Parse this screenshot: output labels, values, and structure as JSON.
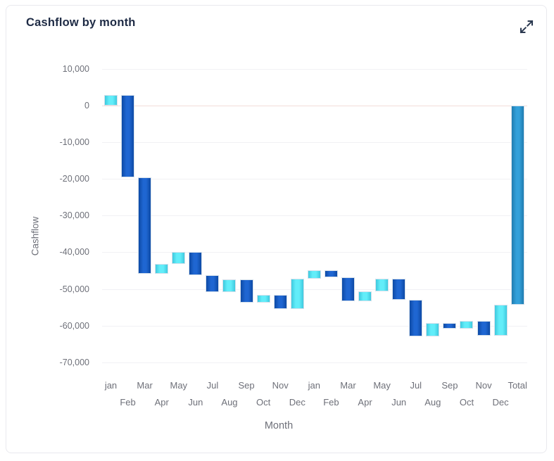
{
  "card": {
    "title": "Cashflow by month",
    "expand_button": {
      "icon": "expand-diagonal-arrows-icon"
    }
  },
  "chart_data": {
    "type": "bar",
    "variant": "waterfall",
    "title": "Cashflow by month",
    "xlabel": "Month",
    "ylabel": "Cashflow",
    "ylim": [
      -70000,
      10000
    ],
    "ytick_step": 10000,
    "ytick_labels": [
      "10,000",
      "0",
      "-10,000",
      "-20,000",
      "-30,000",
      "-40,000",
      "-50,000",
      "-60,000",
      "-70,000"
    ],
    "grid": true,
    "legend": "none",
    "categories": [
      "jan",
      "Feb",
      "Mar",
      "Apr",
      "May",
      "Jun",
      "Jul",
      "Aug",
      "Sep",
      "Oct",
      "Nov",
      "Dec",
      "jan",
      "Feb",
      "Mar",
      "Apr",
      "May",
      "Jun",
      "Jul",
      "Aug",
      "Sep",
      "Oct",
      "Nov",
      "Dec",
      "Total"
    ],
    "bars": [
      {
        "label": "jan",
        "kind": "increase",
        "change": 2900,
        "start": 0,
        "end": 2900
      },
      {
        "label": "Feb",
        "kind": "decrease",
        "change": -22500,
        "start": 2900,
        "end": -19600
      },
      {
        "label": "Mar",
        "kind": "decrease",
        "change": -26200,
        "start": -19600,
        "end": -45800
      },
      {
        "label": "Apr",
        "kind": "increase",
        "change": 2700,
        "start": -45800,
        "end": -43100
      },
      {
        "label": "May",
        "kind": "increase",
        "change": 3200,
        "start": -43100,
        "end": -39900
      },
      {
        "label": "Jun",
        "kind": "decrease",
        "change": -6400,
        "start": -39900,
        "end": -46300
      },
      {
        "label": "Jul",
        "kind": "decrease",
        "change": -4500,
        "start": -46300,
        "end": -50800
      },
      {
        "label": "Aug",
        "kind": "increase",
        "change": 3400,
        "start": -50800,
        "end": -47400
      },
      {
        "label": "Sep",
        "kind": "decrease",
        "change": -6300,
        "start": -47400,
        "end": -53700
      },
      {
        "label": "Oct",
        "kind": "increase",
        "change": 2100,
        "start": -53700,
        "end": -51600
      },
      {
        "label": "Nov",
        "kind": "decrease",
        "change": -3800,
        "start": -51600,
        "end": -55400
      },
      {
        "label": "Dec",
        "kind": "increase",
        "change": 8100,
        "start": -55400,
        "end": -47300
      },
      {
        "label": "jan",
        "kind": "increase",
        "change": 2400,
        "start": -47300,
        "end": -44900
      },
      {
        "label": "Feb",
        "kind": "decrease",
        "change": -1900,
        "start": -44900,
        "end": -46800
      },
      {
        "label": "Mar",
        "kind": "decrease",
        "change": -6600,
        "start": -46800,
        "end": -53400
      },
      {
        "label": "Apr",
        "kind": "increase",
        "change": 2800,
        "start": -53400,
        "end": -50600
      },
      {
        "label": "May",
        "kind": "increase",
        "change": 3300,
        "start": -50600,
        "end": -47300
      },
      {
        "label": "Jun",
        "kind": "decrease",
        "change": -5700,
        "start": -47300,
        "end": -53000
      },
      {
        "label": "Jul",
        "kind": "decrease",
        "change": -10000,
        "start": -53000,
        "end": -63000
      },
      {
        "label": "Aug",
        "kind": "increase",
        "change": 3600,
        "start": -63000,
        "end": -59400
      },
      {
        "label": "Sep",
        "kind": "decrease",
        "change": -1400,
        "start": -59400,
        "end": -60800
      },
      {
        "label": "Oct",
        "kind": "increase",
        "change": 2000,
        "start": -60800,
        "end": -58800
      },
      {
        "label": "Nov",
        "kind": "decrease",
        "change": -3900,
        "start": -58800,
        "end": -62700
      },
      {
        "label": "Dec",
        "kind": "increase",
        "change": 8300,
        "start": -62700,
        "end": -54400
      },
      {
        "label": "Total",
        "kind": "total",
        "change": -54400,
        "start": 0,
        "end": -54400
      }
    ],
    "colors": {
      "increase": "#62EDF9",
      "decrease": "#1F66D2",
      "total": "#33A0DA",
      "grid_line": "#F1F1F4",
      "zero_line": "#F2DCD9",
      "axis_text": "#6E7079",
      "title_text": "#1E2B45"
    }
  }
}
